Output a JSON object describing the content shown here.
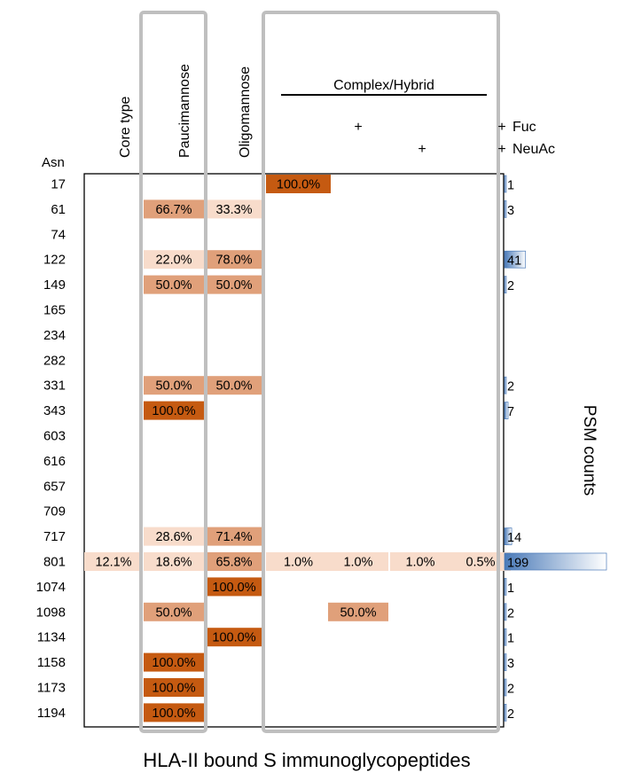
{
  "chart_data": {
    "type": "heatmap",
    "title": "HLA-II bound S immunoglycopeptides",
    "row_header": "Asn",
    "rows": [
      "17",
      "61",
      "74",
      "122",
      "149",
      "165",
      "234",
      "282",
      "331",
      "343",
      "603",
      "616",
      "657",
      "709",
      "717",
      "801",
      "1074",
      "1098",
      "1134",
      "1158",
      "1173",
      "1194"
    ],
    "columns": [
      "Core type",
      "Paucimannose",
      "Oligomannose",
      "Complex/Hybrid",
      "Complex/Hybrid Fuc+",
      "Complex/Hybrid NeuAc+",
      "Complex/Hybrid Fuc+ NeuAc+"
    ],
    "group_label": "Complex/Hybrid",
    "modifier_labels": [
      "Fuc",
      "NeuAc"
    ],
    "fuc_marks": [
      "",
      "",
      "",
      "",
      "+",
      "",
      "+"
    ],
    "neuac_marks": [
      "",
      "",
      "",
      "",
      "",
      "+",
      "+"
    ],
    "values": [
      [
        null,
        null,
        null,
        100.0,
        null,
        null,
        null
      ],
      [
        null,
        66.7,
        33.3,
        null,
        null,
        null,
        null
      ],
      [
        null,
        null,
        null,
        null,
        null,
        null,
        null
      ],
      [
        null,
        22.0,
        78.0,
        null,
        null,
        null,
        null
      ],
      [
        null,
        50.0,
        50.0,
        null,
        null,
        null,
        null
      ],
      [
        null,
        null,
        null,
        null,
        null,
        null,
        null
      ],
      [
        null,
        null,
        null,
        null,
        null,
        null,
        null
      ],
      [
        null,
        null,
        null,
        null,
        null,
        null,
        null
      ],
      [
        null,
        50.0,
        50.0,
        null,
        null,
        null,
        null
      ],
      [
        null,
        100.0,
        null,
        null,
        null,
        null,
        null
      ],
      [
        null,
        null,
        null,
        null,
        null,
        null,
        null
      ],
      [
        null,
        null,
        null,
        null,
        null,
        null,
        null
      ],
      [
        null,
        null,
        null,
        null,
        null,
        null,
        null
      ],
      [
        null,
        null,
        null,
        null,
        null,
        null,
        null
      ],
      [
        null,
        28.6,
        71.4,
        null,
        null,
        null,
        null
      ],
      [
        12.1,
        18.6,
        65.8,
        1.0,
        1.0,
        1.0,
        0.5
      ],
      [
        null,
        null,
        100.0,
        null,
        null,
        null,
        null
      ],
      [
        null,
        50.0,
        null,
        null,
        50.0,
        null,
        null
      ],
      [
        null,
        null,
        100.0,
        null,
        null,
        null,
        null
      ],
      [
        null,
        100.0,
        null,
        null,
        null,
        null,
        null
      ],
      [
        null,
        100.0,
        null,
        null,
        null,
        null,
        null
      ],
      [
        null,
        100.0,
        null,
        null,
        null,
        null,
        null
      ]
    ],
    "psm_label": "PSM counts",
    "psm_counts": [
      1,
      3,
      null,
      41,
      2,
      null,
      null,
      null,
      2,
      7,
      null,
      null,
      null,
      null,
      14,
      199,
      1,
      2,
      1,
      3,
      2,
      2
    ],
    "colors": {
      "high": "#c55a11",
      "mid": "#e0a07a",
      "low": "#f8dccb",
      "bar": "#4a7ab8",
      "outline": "#bfbfbf"
    }
  }
}
